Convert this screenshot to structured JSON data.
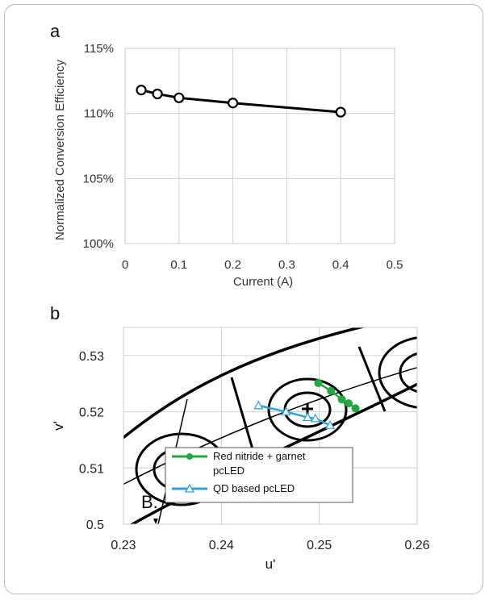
{
  "chart_data": [
    {
      "panel": "a",
      "type": "line",
      "xlabel": "Current (A)",
      "ylabel": "Normalized Conversion Efficiency",
      "xlim": [
        0,
        0.5
      ],
      "ylim": [
        100,
        115
      ],
      "x_ticks": [
        "0",
        "0.1",
        "0.2",
        "0.3",
        "0.4",
        "0.5"
      ],
      "y_ticks": [
        "100%",
        "105%",
        "110%",
        "115%"
      ],
      "grid": true,
      "series": [
        {
          "x": [
            0.03,
            0.06,
            0.1,
            0.2,
            0.4
          ],
          "y": [
            111.8,
            111.5,
            111.2,
            110.8,
            110.1
          ],
          "color": "#000000",
          "marker": "open-circle"
        }
      ]
    },
    {
      "panel": "b",
      "type": "line",
      "xlabel": "u'",
      "ylabel": "v'",
      "xlim": [
        0.23,
        0.26
      ],
      "ylim": [
        0.5,
        0.535
      ],
      "x_ticks": [
        "0.23",
        "0.24",
        "0.25",
        "0.26"
      ],
      "y_ticks": [
        "0.5",
        "0.51",
        "0.52",
        "0.53"
      ],
      "grid": true,
      "legend_position": "bottom-center",
      "annotation": "B.",
      "series": [
        {
          "name": "Red nitride + garnet pcLED",
          "color": "#1faa3c",
          "marker": "filled-circle",
          "x": [
            0.2499,
            0.2512,
            0.2523,
            0.253,
            0.2537
          ],
          "y": [
            0.5251,
            0.5237,
            0.5222,
            0.5215,
            0.5206
          ]
        },
        {
          "name": "QD based pcLED",
          "color": "#2aa4e0",
          "marker": "open-triangle",
          "x": [
            0.2438,
            0.2466,
            0.2488,
            0.2496,
            0.2511
          ],
          "y": [
            0.5211,
            0.52,
            0.519,
            0.5188,
            0.5176
          ]
        }
      ]
    }
  ]
}
